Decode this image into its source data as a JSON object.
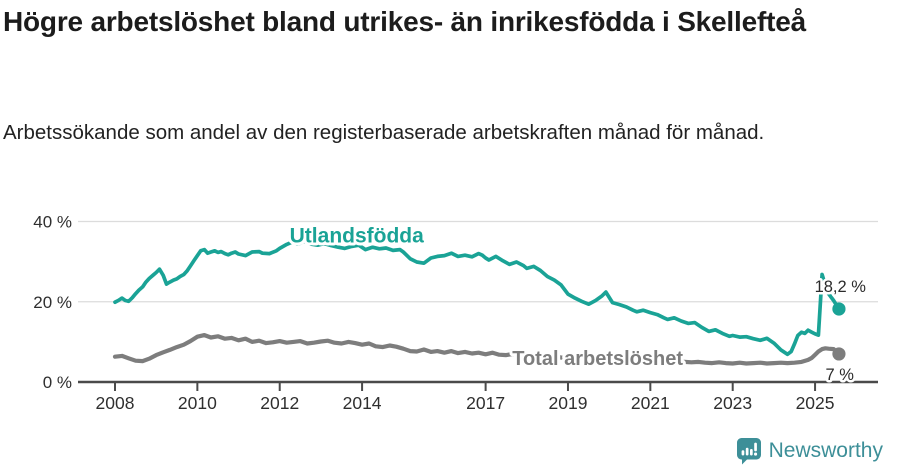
{
  "header": {
    "title": "Högre arbetslöshet bland utrikes- än inrikesfödda i Skellefteå",
    "subtitle": "Arbetssökande som andel av den registerbaserade arbetskraften månad för månad."
  },
  "footer": {
    "brand": "Newsworthy",
    "logo_icon": "newsworthy-speech-bubble-bar-chart-icon",
    "brand_color": "#3d8f98"
  },
  "chart_data": {
    "type": "line",
    "title": "Högre arbetslöshet bland utrikes- än inrikesfödda i Skellefteå",
    "subtitle": "Arbetssökande som andel av den registerbaserade arbetskraften månad för månad.",
    "x_unit": "year (monthly observations)",
    "y_unit": "percent of registered labour force",
    "ylim": [
      0,
      40
    ],
    "xlim": [
      2007.6,
      2026.1
    ],
    "grid": "horizontal",
    "legend_position": "inline-labels",
    "axis_color": "#4a4a4a",
    "grid_color": "#dcdcdc",
    "tick_label_color": "#2f2f2f",
    "value_label_color": "#2b2b2b",
    "yticks": [
      {
        "value": 40,
        "label": "40 %"
      },
      {
        "value": 20,
        "label": "20 %"
      },
      {
        "value": 0,
        "label": "0 %"
      }
    ],
    "xticks": [
      {
        "value": 2008,
        "label": "2008"
      },
      {
        "value": 2010,
        "label": "2010"
      },
      {
        "value": 2012,
        "label": "2012"
      },
      {
        "value": 2014,
        "label": "2014"
      },
      {
        "value": 2017,
        "label": "2017"
      },
      {
        "value": 2019,
        "label": "2019"
      },
      {
        "value": 2021,
        "label": "2021"
      },
      {
        "value": 2023,
        "label": "2023"
      },
      {
        "value": 2025,
        "label": "2025"
      }
    ],
    "series": [
      {
        "id": "utlandsfodda",
        "name": "Utlandsfödda",
        "color": "#1aa396",
        "end_label": "18,2 %",
        "end_value": 18.2,
        "label_pos": {
          "x": 2013.87,
          "y": 36.1
        },
        "points": [
          [
            2008.0,
            19.9
          ],
          [
            2008.08,
            20.3
          ],
          [
            2008.17,
            20.9
          ],
          [
            2008.25,
            20.3
          ],
          [
            2008.33,
            20.1
          ],
          [
            2008.42,
            21.0
          ],
          [
            2008.5,
            22.0
          ],
          [
            2008.58,
            22.9
          ],
          [
            2008.67,
            23.7
          ],
          [
            2008.75,
            24.9
          ],
          [
            2008.83,
            25.8
          ],
          [
            2008.92,
            26.6
          ],
          [
            2009.0,
            27.3
          ],
          [
            2009.08,
            28.1
          ],
          [
            2009.17,
            26.6
          ],
          [
            2009.25,
            24.4
          ],
          [
            2009.33,
            24.9
          ],
          [
            2009.42,
            25.4
          ],
          [
            2009.5,
            25.7
          ],
          [
            2009.58,
            26.3
          ],
          [
            2009.67,
            26.8
          ],
          [
            2009.75,
            27.7
          ],
          [
            2009.83,
            28.9
          ],
          [
            2009.92,
            30.3
          ],
          [
            2010.0,
            31.5
          ],
          [
            2010.08,
            32.7
          ],
          [
            2010.17,
            33.0
          ],
          [
            2010.25,
            32.1
          ],
          [
            2010.33,
            32.4
          ],
          [
            2010.42,
            32.7
          ],
          [
            2010.5,
            32.3
          ],
          [
            2010.58,
            32.5
          ],
          [
            2010.67,
            32.0
          ],
          [
            2010.75,
            31.7
          ],
          [
            2010.83,
            32.1
          ],
          [
            2010.92,
            32.4
          ],
          [
            2011.0,
            31.9
          ],
          [
            2011.17,
            31.5
          ],
          [
            2011.33,
            32.4
          ],
          [
            2011.5,
            32.5
          ],
          [
            2011.58,
            32.1
          ],
          [
            2011.75,
            32.0
          ],
          [
            2011.92,
            32.7
          ],
          [
            2012.0,
            33.3
          ],
          [
            2012.17,
            34.3
          ],
          [
            2012.33,
            35.0
          ],
          [
            2012.42,
            34.4
          ],
          [
            2012.5,
            34.6
          ],
          [
            2012.58,
            35.1
          ],
          [
            2012.75,
            34.4
          ],
          [
            2012.92,
            34.1
          ],
          [
            2013.08,
            34.5
          ],
          [
            2013.25,
            34.0
          ],
          [
            2013.42,
            33.6
          ],
          [
            2013.58,
            33.3
          ],
          [
            2013.75,
            33.8
          ],
          [
            2013.92,
            34.1
          ],
          [
            2014.08,
            33.0
          ],
          [
            2014.25,
            33.6
          ],
          [
            2014.42,
            33.2
          ],
          [
            2014.58,
            33.4
          ],
          [
            2014.75,
            32.8
          ],
          [
            2014.92,
            33.0
          ],
          [
            2015.0,
            32.4
          ],
          [
            2015.17,
            30.7
          ],
          [
            2015.33,
            29.9
          ],
          [
            2015.5,
            29.6
          ],
          [
            2015.67,
            30.9
          ],
          [
            2015.83,
            31.3
          ],
          [
            2016.0,
            31.5
          ],
          [
            2016.17,
            32.1
          ],
          [
            2016.33,
            31.3
          ],
          [
            2016.5,
            31.6
          ],
          [
            2016.67,
            31.2
          ],
          [
            2016.83,
            32.0
          ],
          [
            2016.92,
            31.6
          ],
          [
            2017.0,
            30.9
          ],
          [
            2017.08,
            30.4
          ],
          [
            2017.25,
            31.3
          ],
          [
            2017.42,
            30.2
          ],
          [
            2017.58,
            29.3
          ],
          [
            2017.75,
            29.9
          ],
          [
            2017.92,
            29.0
          ],
          [
            2018.0,
            28.3
          ],
          [
            2018.17,
            28.8
          ],
          [
            2018.33,
            27.8
          ],
          [
            2018.5,
            26.3
          ],
          [
            2018.67,
            25.4
          ],
          [
            2018.83,
            24.2
          ],
          [
            2019.0,
            21.9
          ],
          [
            2019.17,
            20.9
          ],
          [
            2019.33,
            20.1
          ],
          [
            2019.5,
            19.4
          ],
          [
            2019.67,
            20.3
          ],
          [
            2019.83,
            21.5
          ],
          [
            2019.92,
            22.4
          ],
          [
            2020.08,
            19.8
          ],
          [
            2020.25,
            19.3
          ],
          [
            2020.42,
            18.7
          ],
          [
            2020.58,
            17.9
          ],
          [
            2020.67,
            17.5
          ],
          [
            2020.83,
            17.9
          ],
          [
            2021.0,
            17.3
          ],
          [
            2021.17,
            16.8
          ],
          [
            2021.33,
            16.0
          ],
          [
            2021.42,
            15.6
          ],
          [
            2021.58,
            16.0
          ],
          [
            2021.75,
            15.2
          ],
          [
            2021.92,
            14.6
          ],
          [
            2022.08,
            14.8
          ],
          [
            2022.25,
            13.6
          ],
          [
            2022.42,
            12.6
          ],
          [
            2022.58,
            13.0
          ],
          [
            2022.75,
            12.1
          ],
          [
            2022.92,
            11.4
          ],
          [
            2023.0,
            11.6
          ],
          [
            2023.17,
            11.2
          ],
          [
            2023.33,
            11.3
          ],
          [
            2023.5,
            10.8
          ],
          [
            2023.67,
            10.4
          ],
          [
            2023.83,
            10.9
          ],
          [
            2024.0,
            9.7
          ],
          [
            2024.17,
            8.0
          ],
          [
            2024.33,
            6.9
          ],
          [
            2024.42,
            7.6
          ],
          [
            2024.5,
            9.5
          ],
          [
            2024.58,
            11.6
          ],
          [
            2024.67,
            12.4
          ],
          [
            2024.75,
            12.1
          ],
          [
            2024.83,
            12.9
          ],
          [
            2024.92,
            12.4
          ],
          [
            2025.0,
            12.0
          ],
          [
            2025.08,
            11.7
          ],
          [
            2025.17,
            26.8
          ],
          [
            2025.3,
            22.4
          ],
          [
            2025.45,
            20.3
          ],
          [
            2025.58,
            18.2
          ]
        ]
      },
      {
        "id": "total-arbetsloshet",
        "name": "Total arbetslöshet",
        "color": "#7d7d7d",
        "end_label": "7 %",
        "end_value": 7.0,
        "label_pos": {
          "x": 2019.72,
          "y": 5.6
        },
        "points": [
          [
            2008.0,
            6.3
          ],
          [
            2008.17,
            6.5
          ],
          [
            2008.33,
            5.9
          ],
          [
            2008.5,
            5.3
          ],
          [
            2008.67,
            5.2
          ],
          [
            2008.83,
            5.8
          ],
          [
            2009.0,
            6.7
          ],
          [
            2009.17,
            7.4
          ],
          [
            2009.33,
            8.0
          ],
          [
            2009.5,
            8.7
          ],
          [
            2009.67,
            9.3
          ],
          [
            2009.83,
            10.2
          ],
          [
            2010.0,
            11.3
          ],
          [
            2010.17,
            11.7
          ],
          [
            2010.33,
            11.1
          ],
          [
            2010.5,
            11.4
          ],
          [
            2010.67,
            10.8
          ],
          [
            2010.83,
            11.0
          ],
          [
            2011.0,
            10.4
          ],
          [
            2011.17,
            10.8
          ],
          [
            2011.33,
            10.0
          ],
          [
            2011.5,
            10.3
          ],
          [
            2011.67,
            9.7
          ],
          [
            2011.83,
            9.9
          ],
          [
            2012.0,
            10.2
          ],
          [
            2012.17,
            9.8
          ],
          [
            2012.33,
            10.0
          ],
          [
            2012.5,
            10.2
          ],
          [
            2012.67,
            9.6
          ],
          [
            2012.83,
            9.8
          ],
          [
            2013.0,
            10.1
          ],
          [
            2013.17,
            10.3
          ],
          [
            2013.33,
            9.8
          ],
          [
            2013.5,
            9.6
          ],
          [
            2013.67,
            10.0
          ],
          [
            2013.83,
            9.7
          ],
          [
            2014.0,
            9.3
          ],
          [
            2014.17,
            9.6
          ],
          [
            2014.33,
            8.9
          ],
          [
            2014.5,
            8.7
          ],
          [
            2014.67,
            9.1
          ],
          [
            2014.83,
            8.8
          ],
          [
            2015.0,
            8.3
          ],
          [
            2015.17,
            7.7
          ],
          [
            2015.33,
            7.6
          ],
          [
            2015.5,
            8.1
          ],
          [
            2015.67,
            7.5
          ],
          [
            2015.83,
            7.7
          ],
          [
            2016.0,
            7.3
          ],
          [
            2016.17,
            7.7
          ],
          [
            2016.33,
            7.2
          ],
          [
            2016.5,
            7.5
          ],
          [
            2016.67,
            7.1
          ],
          [
            2016.83,
            7.3
          ],
          [
            2017.0,
            6.9
          ],
          [
            2017.17,
            7.3
          ],
          [
            2017.33,
            6.8
          ],
          [
            2017.5,
            6.7
          ],
          [
            2017.67,
            7.0
          ],
          [
            2017.83,
            6.6
          ],
          [
            2018.0,
            6.4
          ],
          [
            2018.17,
            6.7
          ],
          [
            2018.33,
            6.2
          ],
          [
            2018.5,
            6.1
          ],
          [
            2018.67,
            6.4
          ],
          [
            2018.83,
            6.1
          ],
          [
            2019.0,
            6.0
          ],
          [
            2019.17,
            6.3
          ],
          [
            2019.33,
            5.9
          ],
          [
            2019.5,
            5.8
          ],
          [
            2019.67,
            6.1
          ],
          [
            2019.83,
            5.9
          ],
          [
            2020.0,
            6.2
          ],
          [
            2020.17,
            6.6
          ],
          [
            2020.33,
            6.4
          ],
          [
            2020.5,
            6.2
          ],
          [
            2020.67,
            6.0
          ],
          [
            2020.83,
            5.9
          ],
          [
            2021.0,
            5.8
          ],
          [
            2021.17,
            5.6
          ],
          [
            2021.33,
            5.4
          ],
          [
            2021.5,
            5.3
          ],
          [
            2021.67,
            5.1
          ],
          [
            2021.83,
            5.0
          ],
          [
            2022.0,
            4.9
          ],
          [
            2022.17,
            5.0
          ],
          [
            2022.33,
            4.8
          ],
          [
            2022.5,
            4.7
          ],
          [
            2022.67,
            4.9
          ],
          [
            2022.83,
            4.7
          ],
          [
            2023.0,
            4.6
          ],
          [
            2023.17,
            4.8
          ],
          [
            2023.33,
            4.6
          ],
          [
            2023.5,
            4.7
          ],
          [
            2023.67,
            4.8
          ],
          [
            2023.83,
            4.6
          ],
          [
            2024.0,
            4.7
          ],
          [
            2024.17,
            4.8
          ],
          [
            2024.33,
            4.7
          ],
          [
            2024.5,
            4.8
          ],
          [
            2024.67,
            5.0
          ],
          [
            2024.83,
            5.5
          ],
          [
            2024.92,
            6.0
          ],
          [
            2025.0,
            6.8
          ],
          [
            2025.08,
            7.6
          ],
          [
            2025.17,
            8.2
          ],
          [
            2025.25,
            8.4
          ],
          [
            2025.33,
            8.3
          ],
          [
            2025.45,
            8.2
          ],
          [
            2025.58,
            7.0
          ]
        ]
      }
    ]
  }
}
